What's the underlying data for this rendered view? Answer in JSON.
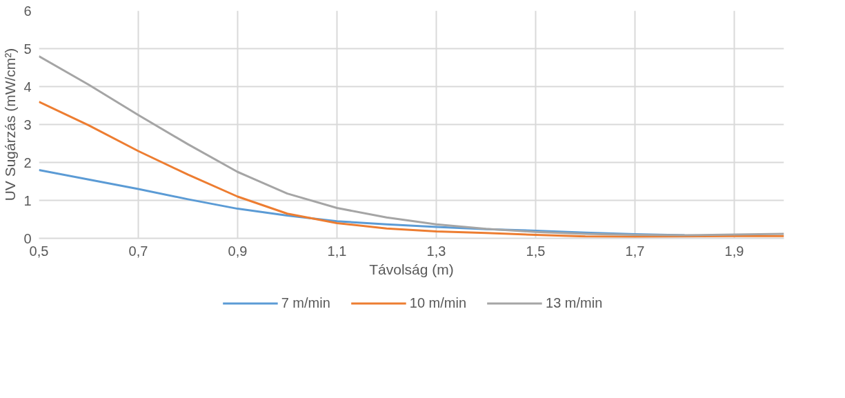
{
  "chart_data": {
    "type": "line",
    "xlabel": "Távolság (m)",
    "ylabel": "UV Sugárzás (mW/cm²)",
    "x": [
      0.5,
      0.6,
      0.7,
      0.8,
      0.9,
      1.0,
      1.1,
      1.2,
      1.3,
      1.4,
      1.5,
      1.6,
      1.7,
      1.8,
      1.9,
      2.0
    ],
    "series": [
      {
        "name": "7 m/min",
        "color": "#5b9bd5",
        "values": [
          1.8,
          1.55,
          1.3,
          1.03,
          0.78,
          0.6,
          0.45,
          0.37,
          0.3,
          0.24,
          0.2,
          0.15,
          0.11,
          0.08,
          null,
          null
        ]
      },
      {
        "name": "10 m/min",
        "color": "#ed7d31",
        "values": [
          3.6,
          2.98,
          2.3,
          1.68,
          1.1,
          0.65,
          0.4,
          0.26,
          0.18,
          0.14,
          0.09,
          0.05,
          0.04,
          0.05,
          0.06,
          0.06
        ]
      },
      {
        "name": "13 m/min",
        "color": "#a5a5a5",
        "values": [
          4.8,
          4.05,
          3.25,
          2.48,
          1.75,
          1.18,
          0.8,
          0.55,
          0.37,
          0.25,
          0.17,
          0.12,
          0.09,
          0.08,
          0.1,
          0.12
        ]
      }
    ],
    "xlim": [
      0.5,
      2.0
    ],
    "xticks": [
      {
        "value": 0.5,
        "label": "0,5"
      },
      {
        "value": 0.7,
        "label": "0,7"
      },
      {
        "value": 0.9,
        "label": "0,9"
      },
      {
        "value": 1.1,
        "label": "1,1"
      },
      {
        "value": 1.3,
        "label": "1,3"
      },
      {
        "value": 1.5,
        "label": "1,5"
      },
      {
        "value": 1.7,
        "label": "1,7"
      },
      {
        "value": 1.9,
        "label": "1,9"
      }
    ],
    "ylim": [
      0,
      6
    ],
    "yticks": [
      0,
      1,
      2,
      3,
      4,
      5,
      6
    ],
    "grid": true,
    "legend": "bottom"
  }
}
